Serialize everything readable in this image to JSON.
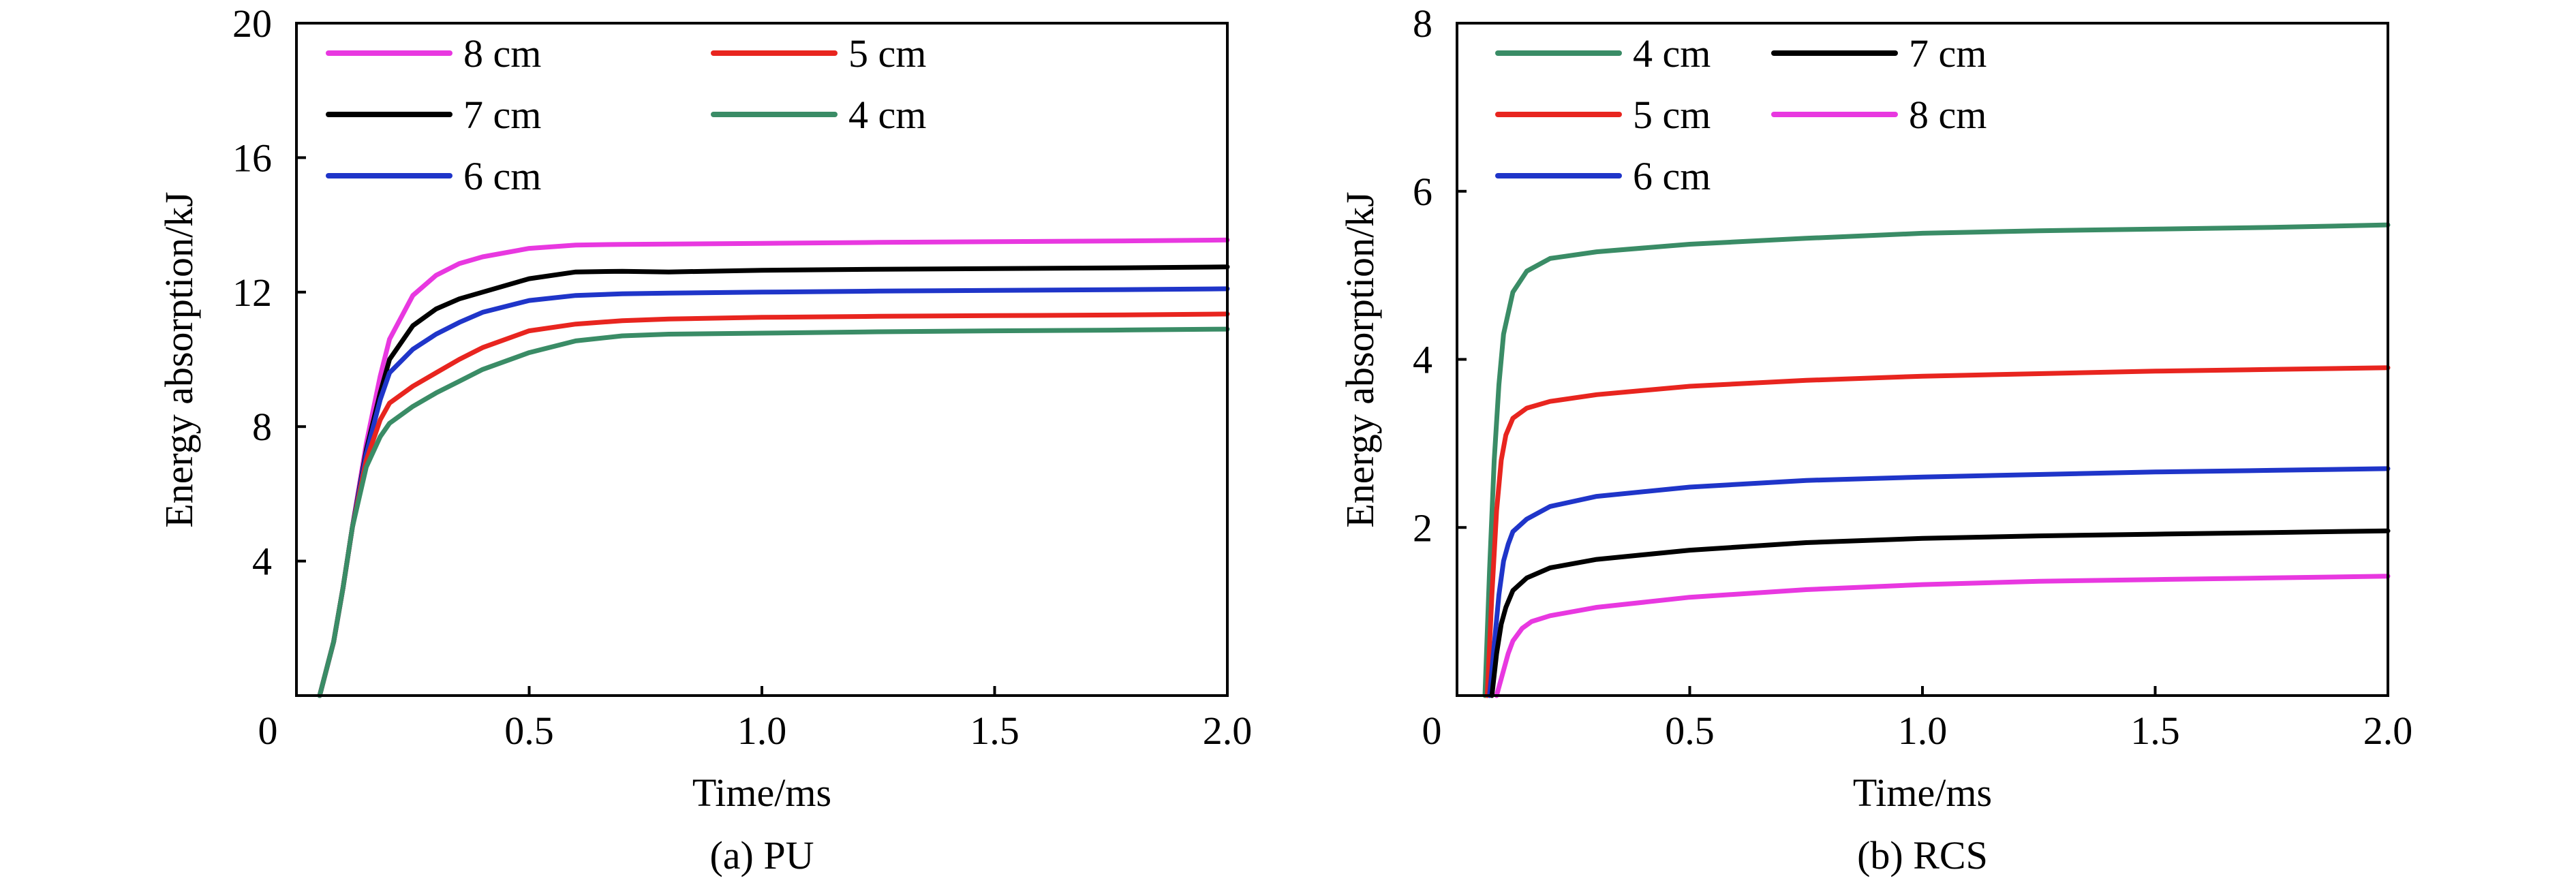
{
  "chart_data": [
    {
      "type": "line",
      "caption": "(a) PU",
      "xlabel": "Time/ms",
      "ylabel": "Energy absorption/kJ",
      "xlim": [
        0,
        2.0
      ],
      "ylim": [
        0,
        20
      ],
      "xticks": [
        0,
        0.5,
        1.0,
        1.5,
        2.0
      ],
      "xtick_labels": [
        "0",
        "0.5",
        "1.0",
        "1.5",
        "2.0"
      ],
      "yticks": [
        4,
        8,
        12,
        16,
        20
      ],
      "ytick_labels": [
        "4",
        "8",
        "12",
        "16",
        "20"
      ],
      "grid": false,
      "legend_position": "top-left",
      "series": [
        {
          "name": "8 cm",
          "color": "#e838e0",
          "x": [
            0.05,
            0.08,
            0.1,
            0.12,
            0.15,
            0.18,
            0.2,
            0.25,
            0.3,
            0.35,
            0.4,
            0.5,
            0.6,
            0.7,
            0.8,
            1.0,
            1.25,
            1.5,
            1.75,
            2.0
          ],
          "y": [
            0,
            1.6,
            3.2,
            5.0,
            7.5,
            9.5,
            10.6,
            11.9,
            12.5,
            12.85,
            13.05,
            13.3,
            13.4,
            13.42,
            13.43,
            13.45,
            13.48,
            13.5,
            13.52,
            13.55
          ]
        },
        {
          "name": "7 cm",
          "color": "#000000",
          "x": [
            0.05,
            0.08,
            0.1,
            0.12,
            0.15,
            0.18,
            0.2,
            0.25,
            0.3,
            0.35,
            0.4,
            0.5,
            0.6,
            0.7,
            0.8,
            1.0,
            1.25,
            1.5,
            1.75,
            2.0
          ],
          "y": [
            0,
            1.6,
            3.2,
            5.0,
            7.3,
            9.0,
            10.0,
            11.0,
            11.5,
            11.8,
            12.0,
            12.4,
            12.6,
            12.62,
            12.6,
            12.65,
            12.68,
            12.7,
            12.72,
            12.75
          ]
        },
        {
          "name": "6 cm",
          "color": "#1f35c9",
          "x": [
            0.05,
            0.08,
            0.1,
            0.12,
            0.15,
            0.18,
            0.2,
            0.25,
            0.3,
            0.35,
            0.4,
            0.5,
            0.6,
            0.7,
            0.8,
            1.0,
            1.25,
            1.5,
            1.75,
            2.0
          ],
          "y": [
            0,
            1.6,
            3.2,
            5.0,
            7.2,
            8.8,
            9.6,
            10.3,
            10.75,
            11.1,
            11.4,
            11.75,
            11.9,
            11.95,
            11.97,
            12.0,
            12.03,
            12.05,
            12.07,
            12.1
          ]
        },
        {
          "name": "5 cm",
          "color": "#e8251f",
          "x": [
            0.05,
            0.08,
            0.1,
            0.12,
            0.15,
            0.18,
            0.2,
            0.25,
            0.3,
            0.35,
            0.4,
            0.5,
            0.6,
            0.7,
            0.8,
            1.0,
            1.25,
            1.5,
            1.75,
            2.0
          ],
          "y": [
            0,
            1.6,
            3.2,
            5.0,
            7.0,
            8.2,
            8.7,
            9.2,
            9.6,
            10.0,
            10.35,
            10.85,
            11.05,
            11.15,
            11.2,
            11.25,
            11.28,
            11.3,
            11.32,
            11.35
          ]
        },
        {
          "name": "4 cm",
          "color": "#3a8c66",
          "x": [
            0.05,
            0.08,
            0.1,
            0.12,
            0.15,
            0.18,
            0.2,
            0.25,
            0.3,
            0.35,
            0.4,
            0.5,
            0.6,
            0.7,
            0.8,
            1.0,
            1.25,
            1.5,
            1.75,
            2.0
          ],
          "y": [
            0,
            1.6,
            3.2,
            5.0,
            6.8,
            7.7,
            8.1,
            8.6,
            9.0,
            9.35,
            9.7,
            10.2,
            10.55,
            10.7,
            10.75,
            10.78,
            10.82,
            10.85,
            10.87,
            10.9
          ]
        }
      ]
    },
    {
      "type": "line",
      "caption": "(b) RCS",
      "xlabel": "Time/ms",
      "ylabel": "Energy absorption/kJ",
      "xlim": [
        0,
        2.0
      ],
      "ylim": [
        0,
        8
      ],
      "xticks": [
        0,
        0.5,
        1.0,
        1.5,
        2.0
      ],
      "xtick_labels": [
        "0",
        "0.5",
        "1.0",
        "1.5",
        "2.0"
      ],
      "yticks": [
        2,
        4,
        6,
        8
      ],
      "ytick_labels": [
        "2",
        "4",
        "6",
        "8"
      ],
      "grid": false,
      "legend_position": "top-left",
      "series": [
        {
          "name": "4 cm",
          "color": "#3a8c66",
          "x": [
            0.06,
            0.07,
            0.08,
            0.09,
            0.1,
            0.12,
            0.15,
            0.2,
            0.3,
            0.5,
            0.75,
            1.0,
            1.25,
            1.5,
            1.75,
            2.0
          ],
          "y": [
            0,
            1.5,
            2.8,
            3.7,
            4.3,
            4.8,
            5.05,
            5.2,
            5.28,
            5.37,
            5.44,
            5.5,
            5.53,
            5.55,
            5.57,
            5.6
          ]
        },
        {
          "name": "5 cm",
          "color": "#e8251f",
          "x": [
            0.065,
            0.075,
            0.085,
            0.095,
            0.105,
            0.12,
            0.15,
            0.2,
            0.3,
            0.5,
            0.75,
            1.0,
            1.25,
            1.5,
            1.75,
            2.0
          ],
          "y": [
            0,
            1.2,
            2.2,
            2.8,
            3.1,
            3.3,
            3.42,
            3.5,
            3.58,
            3.68,
            3.75,
            3.8,
            3.83,
            3.86,
            3.88,
            3.9
          ]
        },
        {
          "name": "6 cm",
          "color": "#1f35c9",
          "x": [
            0.07,
            0.08,
            0.09,
            0.1,
            0.11,
            0.12,
            0.15,
            0.2,
            0.3,
            0.5,
            0.75,
            1.0,
            1.25,
            1.5,
            1.75,
            2.0
          ],
          "y": [
            0,
            0.6,
            1.2,
            1.6,
            1.8,
            1.95,
            2.1,
            2.25,
            2.37,
            2.48,
            2.56,
            2.6,
            2.63,
            2.66,
            2.68,
            2.7
          ]
        },
        {
          "name": "7 cm",
          "color": "#000000",
          "x": [
            0.075,
            0.085,
            0.095,
            0.105,
            0.12,
            0.15,
            0.2,
            0.3,
            0.5,
            0.75,
            1.0,
            1.25,
            1.5,
            1.75,
            2.0
          ],
          "y": [
            0,
            0.5,
            0.85,
            1.05,
            1.25,
            1.4,
            1.52,
            1.62,
            1.73,
            1.82,
            1.87,
            1.9,
            1.92,
            1.94,
            1.96
          ]
        },
        {
          "name": "8 cm",
          "color": "#e838e0",
          "x": [
            0.085,
            0.1,
            0.11,
            0.12,
            0.14,
            0.16,
            0.2,
            0.3,
            0.5,
            0.75,
            1.0,
            1.25,
            1.5,
            1.75,
            2.0
          ],
          "y": [
            0,
            0.3,
            0.5,
            0.65,
            0.8,
            0.88,
            0.95,
            1.05,
            1.17,
            1.26,
            1.32,
            1.36,
            1.38,
            1.4,
            1.42
          ]
        }
      ]
    }
  ]
}
